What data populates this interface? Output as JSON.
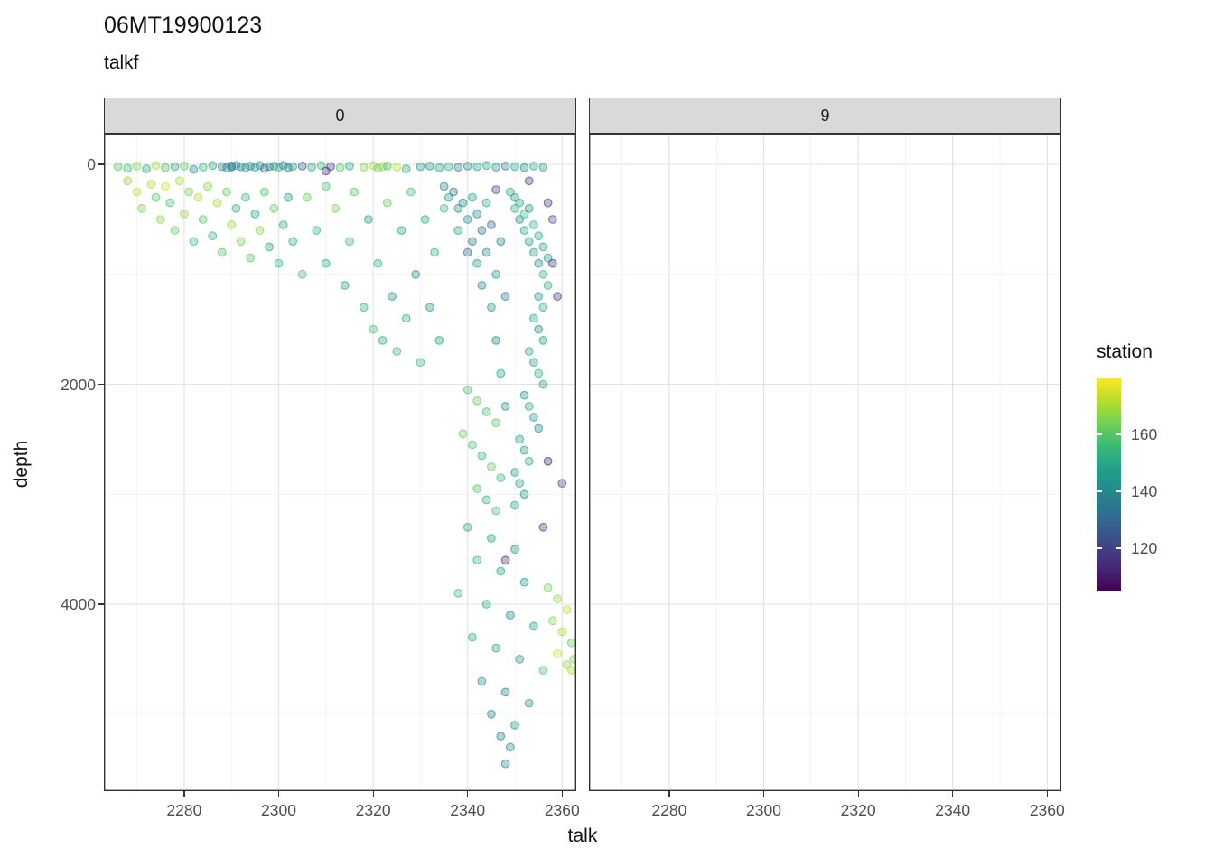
{
  "title": "06MT19900123",
  "subtitle": "talkf",
  "axes": {
    "x_label": "talk",
    "y_label": "depth"
  },
  "legend": {
    "title": "station",
    "tick_values": [
      160,
      140,
      120
    ],
    "domain": [
      105,
      180
    ]
  },
  "colors": {
    "strip_fill": "#d9d9d9",
    "panel_border": "#333333",
    "grid_major": "#e4e4e4",
    "grid_minor": "#f1f1f1",
    "axis_text": "#4d4d4d",
    "text": "#111111",
    "viridis": [
      "#440154",
      "#482878",
      "#3e4989",
      "#31688e",
      "#26828e",
      "#1f9e89",
      "#35b779",
      "#6ece58",
      "#b5de2b",
      "#fde725"
    ]
  },
  "chart_data": {
    "type": "scatter",
    "title": "06MT19900123",
    "subtitle": "talkf",
    "xlabel": "talk",
    "ylabel": "depth",
    "y_reversed": true,
    "x_domain": [
      2263,
      2363
    ],
    "y_domain": [
      -280,
      5700
    ],
    "x_ticks": [
      2280,
      2300,
      2320,
      2340,
      2360
    ],
    "x_minor": [
      2270,
      2290,
      2310,
      2330,
      2350
    ],
    "y_ticks": [
      0,
      2000,
      4000
    ],
    "y_minor": [
      1000,
      3000,
      5000
    ],
    "point_style": {
      "radius": 4.3,
      "fill_opacity": 0.35,
      "stroke_opacity": 0.6,
      "stroke_width": 1.2
    },
    "color_variable": "station",
    "facets": [
      {
        "label": "0",
        "points": [
          [
            2266,
            20,
            160
          ],
          [
            2268,
            35,
            155
          ],
          [
            2270,
            15,
            166
          ],
          [
            2272,
            40,
            150
          ],
          [
            2274,
            10,
            170
          ],
          [
            2276,
            30,
            158
          ],
          [
            2278,
            20,
            148
          ],
          [
            2280,
            15,
            162
          ],
          [
            2282,
            45,
            141
          ],
          [
            2284,
            25,
            155
          ],
          [
            2286,
            10,
            150
          ],
          [
            2288,
            20,
            135
          ],
          [
            2289,
            30,
            142
          ],
          [
            2290,
            15,
            128
          ],
          [
            2290,
            25,
            140
          ],
          [
            2291,
            10,
            146
          ],
          [
            2292,
            20,
            132
          ],
          [
            2293,
            30,
            150
          ],
          [
            2294,
            15,
            138
          ],
          [
            2295,
            25,
            143
          ],
          [
            2296,
            10,
            148
          ],
          [
            2297,
            35,
            130
          ],
          [
            2298,
            20,
            136
          ],
          [
            2299,
            15,
            144
          ],
          [
            2300,
            25,
            152
          ],
          [
            2301,
            10,
            140
          ],
          [
            2302,
            30,
            134
          ],
          [
            2303,
            20,
            146
          ],
          [
            2305,
            15,
            126
          ],
          [
            2307,
            25,
            150
          ],
          [
            2309,
            10,
            155
          ],
          [
            2311,
            20,
            118
          ],
          [
            2313,
            30,
            160
          ],
          [
            2315,
            15,
            150
          ],
          [
            2318,
            25,
            165
          ],
          [
            2320,
            10,
            170
          ],
          [
            2321,
            35,
            162
          ],
          [
            2322,
            20,
            168
          ],
          [
            2323,
            15,
            158
          ],
          [
            2325,
            25,
            172
          ],
          [
            2327,
            40,
            150
          ],
          [
            2330,
            20,
            145
          ],
          [
            2332,
            15,
            140
          ],
          [
            2334,
            30,
            148
          ],
          [
            2336,
            20,
            152
          ],
          [
            2338,
            25,
            138
          ],
          [
            2340,
            15,
            142
          ],
          [
            2342,
            20,
            146
          ],
          [
            2344,
            10,
            150
          ],
          [
            2346,
            25,
            144
          ],
          [
            2348,
            15,
            136
          ],
          [
            2350,
            20,
            148
          ],
          [
            2352,
            30,
            140
          ],
          [
            2354,
            15,
            150
          ],
          [
            2356,
            25,
            146
          ],
          [
            2268,
            150,
            168
          ],
          [
            2270,
            250,
            172
          ],
          [
            2271,
            400,
            165
          ],
          [
            2273,
            180,
            170
          ],
          [
            2274,
            300,
            160
          ],
          [
            2275,
            500,
            166
          ],
          [
            2276,
            200,
            174
          ],
          [
            2277,
            350,
            158
          ],
          [
            2278,
            600,
            162
          ],
          [
            2279,
            150,
            170
          ],
          [
            2280,
            450,
            168
          ],
          [
            2281,
            250,
            164
          ],
          [
            2282,
            700,
            156
          ],
          [
            2283,
            300,
            172
          ],
          [
            2284,
            500,
            160
          ],
          [
            2285,
            200,
            166
          ],
          [
            2286,
            650,
            154
          ],
          [
            2287,
            350,
            170
          ],
          [
            2288,
            800,
            158
          ],
          [
            2289,
            250,
            162
          ],
          [
            2290,
            550,
            168
          ],
          [
            2291,
            400,
            152
          ],
          [
            2292,
            700,
            164
          ],
          [
            2293,
            300,
            156
          ],
          [
            2294,
            850,
            160
          ],
          [
            2295,
            450,
            150
          ],
          [
            2296,
            600,
            166
          ],
          [
            2297,
            250,
            158
          ],
          [
            2298,
            750,
            148
          ],
          [
            2299,
            400,
            162
          ],
          [
            2300,
            900,
            154
          ],
          [
            2301,
            550,
            150
          ],
          [
            2302,
            300,
            146
          ],
          [
            2303,
            700,
            152
          ],
          [
            2305,
            1000,
            158
          ],
          [
            2306,
            300,
            162
          ],
          [
            2308,
            600,
            154
          ],
          [
            2310,
            200,
            158
          ],
          [
            2310,
            900,
            150
          ],
          [
            2312,
            400,
            164
          ],
          [
            2314,
            1100,
            148
          ],
          [
            2315,
            700,
            156
          ],
          [
            2316,
            250,
            160
          ],
          [
            2318,
            1300,
            152
          ],
          [
            2319,
            500,
            146
          ],
          [
            2320,
            1500,
            158
          ],
          [
            2321,
            900,
            154
          ],
          [
            2322,
            1600,
            150
          ],
          [
            2323,
            350,
            162
          ],
          [
            2324,
            1200,
            144
          ],
          [
            2325,
            1700,
            156
          ],
          [
            2326,
            600,
            148
          ],
          [
            2327,
            1400,
            152
          ],
          [
            2328,
            250,
            158
          ],
          [
            2329,
            1000,
            142
          ],
          [
            2330,
            1800,
            154
          ],
          [
            2331,
            500,
            150
          ],
          [
            2332,
            1300,
            146
          ],
          [
            2333,
            800,
            152
          ],
          [
            2334,
            1600,
            148
          ],
          [
            2335,
            400,
            156
          ],
          [
            2335,
            200,
            140
          ],
          [
            2336,
            300,
            145
          ],
          [
            2337,
            250,
            135
          ],
          [
            2338,
            400,
            142
          ],
          [
            2338,
            600,
            150
          ],
          [
            2339,
            350,
            138
          ],
          [
            2340,
            500,
            144
          ],
          [
            2340,
            800,
            132
          ],
          [
            2341,
            300,
            148
          ],
          [
            2341,
            700,
            136
          ],
          [
            2342,
            450,
            140
          ],
          [
            2342,
            900,
            146
          ],
          [
            2343,
            600,
            134
          ],
          [
            2343,
            1100,
            142
          ],
          [
            2344,
            350,
            150
          ],
          [
            2344,
            800,
            138
          ],
          [
            2345,
            1300,
            144
          ],
          [
            2345,
            550,
            130
          ],
          [
            2346,
            1000,
            146
          ],
          [
            2346,
            1600,
            140
          ],
          [
            2347,
            700,
            136
          ],
          [
            2347,
            1900,
            148
          ],
          [
            2348,
            1200,
            134
          ],
          [
            2348,
            2200,
            142
          ],
          [
            2349,
            250,
            150
          ],
          [
            2350,
            300,
            145
          ],
          [
            2350,
            400,
            152
          ],
          [
            2351,
            350,
            148
          ],
          [
            2351,
            500,
            140
          ],
          [
            2352,
            450,
            155
          ],
          [
            2352,
            600,
            150
          ],
          [
            2353,
            400,
            144
          ],
          [
            2353,
            700,
            148
          ],
          [
            2354,
            550,
            152
          ],
          [
            2354,
            800,
            146
          ],
          [
            2355,
            650,
            150
          ],
          [
            2355,
            900,
            142
          ],
          [
            2356,
            750,
            148
          ],
          [
            2356,
            1000,
            154
          ],
          [
            2357,
            850,
            146
          ],
          [
            2357,
            1100,
            150
          ],
          [
            2355,
            1200,
            144
          ],
          [
            2356,
            1300,
            152
          ],
          [
            2354,
            1400,
            148
          ],
          [
            2355,
            1500,
            140
          ],
          [
            2356,
            1600,
            146
          ],
          [
            2353,
            1700,
            150
          ],
          [
            2354,
            1800,
            144
          ],
          [
            2355,
            1900,
            152
          ],
          [
            2356,
            2000,
            148
          ],
          [
            2352,
            2100,
            142
          ],
          [
            2353,
            2200,
            150
          ],
          [
            2354,
            2300,
            146
          ],
          [
            2355,
            2400,
            140
          ],
          [
            2351,
            2500,
            148
          ],
          [
            2352,
            2600,
            144
          ],
          [
            2353,
            2700,
            152
          ],
          [
            2350,
            2800,
            146
          ],
          [
            2351,
            2900,
            150
          ],
          [
            2352,
            3000,
            142
          ],
          [
            2350,
            3100,
            148
          ],
          [
            2358,
            900,
            115
          ],
          [
            2359,
            1200,
            118
          ],
          [
            2357,
            2700,
            112
          ],
          [
            2360,
            2900,
            120
          ],
          [
            2356,
            3300,
            116
          ],
          [
            2348,
            3600,
            114
          ],
          [
            2353,
            150,
            118
          ],
          [
            2310,
            60,
            115
          ],
          [
            2346,
            230,
            120
          ],
          [
            2358,
            500,
            122
          ],
          [
            2357,
            350,
            118
          ],
          [
            2340,
            2050,
            158
          ],
          [
            2342,
            2150,
            162
          ],
          [
            2344,
            2250,
            156
          ],
          [
            2346,
            2350,
            160
          ],
          [
            2339,
            2450,
            164
          ],
          [
            2341,
            2550,
            158
          ],
          [
            2343,
            2650,
            154
          ],
          [
            2345,
            2750,
            162
          ],
          [
            2347,
            2850,
            156
          ],
          [
            2342,
            2950,
            160
          ],
          [
            2344,
            3050,
            152
          ],
          [
            2346,
            3150,
            158
          ],
          [
            2340,
            3300,
            150
          ],
          [
            2345,
            3400,
            146
          ],
          [
            2350,
            3500,
            142
          ],
          [
            2342,
            3600,
            154
          ],
          [
            2347,
            3700,
            148
          ],
          [
            2352,
            3800,
            144
          ],
          [
            2338,
            3900,
            156
          ],
          [
            2344,
            4000,
            150
          ],
          [
            2349,
            4100,
            140
          ],
          [
            2354,
            4200,
            146
          ],
          [
            2341,
            4300,
            152
          ],
          [
            2346,
            4400,
            148
          ],
          [
            2351,
            4500,
            144
          ],
          [
            2356,
            4600,
            158
          ],
          [
            2343,
            4700,
            142
          ],
          [
            2348,
            4800,
            138
          ],
          [
            2353,
            4900,
            146
          ],
          [
            2345,
            5000,
            140
          ],
          [
            2350,
            5100,
            144
          ],
          [
            2347,
            5200,
            136
          ],
          [
            2349,
            5300,
            142
          ],
          [
            2348,
            5450,
            138
          ],
          [
            2357,
            3850,
            164
          ],
          [
            2359,
            3950,
            168
          ],
          [
            2361,
            4050,
            172
          ],
          [
            2358,
            4150,
            166
          ],
          [
            2360,
            4250,
            170
          ],
          [
            2362,
            4350,
            162
          ],
          [
            2359,
            4450,
            174
          ],
          [
            2361,
            4550,
            168
          ],
          [
            2362.5,
            4500,
            165
          ],
          [
            2362,
            4600,
            170
          ]
        ]
      },
      {
        "label": "9",
        "points": []
      }
    ]
  }
}
